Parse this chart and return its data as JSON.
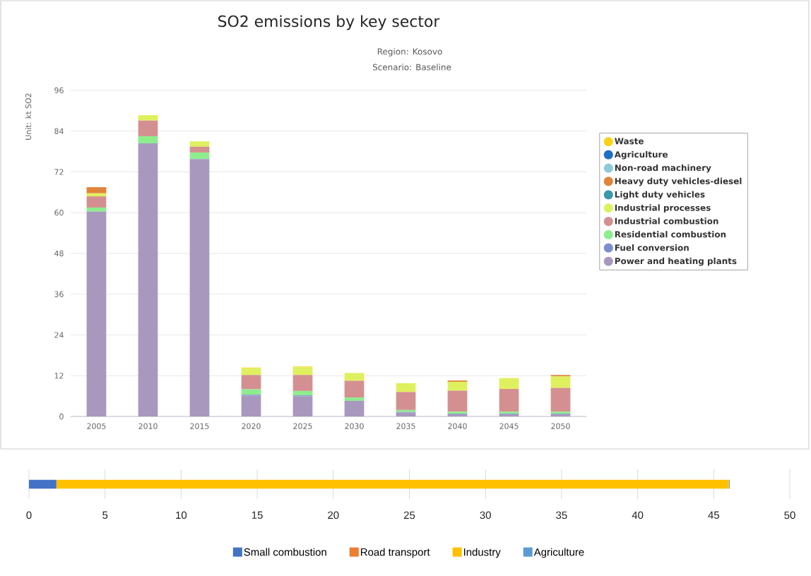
{
  "chart_data": [
    {
      "type": "bar",
      "title": "SO2 emissions by key sector",
      "subtitle": "Region: Kosovo",
      "annotations": [
        "Scenario: Baseline"
      ],
      "ylabel": "Unit: kt SO2",
      "stacked": true,
      "categories": [
        "2005",
        "2010",
        "2015",
        "2020",
        "2025",
        "2030",
        "2035",
        "2040",
        "2045",
        "2050"
      ],
      "ylim": [
        0,
        96
      ],
      "yticks": [
        0,
        12,
        24,
        36,
        48,
        60,
        72,
        84,
        96
      ],
      "grid": "y",
      "legend": "right",
      "series": [
        {
          "name": "Power and heating plants",
          "color": "#a898be",
          "values": [
            60.3,
            80.4,
            75.8,
            6.1,
            5.9,
            4.6,
            1.1,
            0.6,
            0.6,
            0.6
          ]
        },
        {
          "name": "Fuel conversion",
          "color": "#7b8fcc",
          "values": [
            0,
            0,
            0,
            0.3,
            0.3,
            0,
            0.2,
            0.2,
            0.2,
            0.2
          ]
        },
        {
          "name": "Residential combustion",
          "color": "#8ded8d",
          "values": [
            1.2,
            2.1,
            1.9,
            1.6,
            1.3,
            1.0,
            0.6,
            0.6,
            0.6,
            0.6
          ]
        },
        {
          "name": "Industrial combustion",
          "color": "#d49090",
          "values": [
            3.3,
            4.6,
            1.7,
            4.2,
            4.7,
            4.9,
            5.3,
            6.2,
            6.7,
            7.0
          ]
        },
        {
          "name": "Industrial processes",
          "color": "#dff05e",
          "values": [
            0.9,
            1.6,
            1.6,
            2.0,
            2.3,
            2.3,
            2.6,
            2.6,
            3.2,
            3.4
          ]
        },
        {
          "name": "Light duty vehicles",
          "color": "#3a98a8",
          "values": [
            0,
            0,
            0,
            0,
            0,
            0,
            0,
            0,
            0,
            0
          ]
        },
        {
          "name": "Heavy duty vehicles-diesel",
          "color": "#e0843a",
          "values": [
            1.8,
            0,
            0,
            0,
            0,
            0,
            0,
            0.4,
            0,
            0.4
          ]
        },
        {
          "name": "Non-road machinery",
          "color": "#8ec9dc",
          "values": [
            0,
            0,
            0,
            0,
            0,
            0,
            0,
            0,
            0,
            0
          ]
        },
        {
          "name": "Agriculture",
          "color": "#1f6fc5",
          "values": [
            0,
            0,
            0,
            0,
            0,
            0,
            0,
            0,
            0,
            0
          ]
        },
        {
          "name": "Waste",
          "color": "#f9d21a",
          "values": [
            0,
            0,
            0,
            0.2,
            0.2,
            0,
            0,
            0,
            0,
            0
          ]
        }
      ]
    },
    {
      "type": "bar",
      "orientation": "horizontal",
      "stacked": true,
      "categories": [
        null
      ],
      "xlim": [
        0,
        50
      ],
      "xticks": [
        0,
        5,
        10,
        15,
        20,
        25,
        30,
        35,
        40,
        45,
        50
      ],
      "grid": "x",
      "legend": "bottom",
      "series": [
        {
          "name": "Small combustion",
          "color": "#4472c4",
          "values": [
            1.8
          ]
        },
        {
          "name": "Road transport",
          "color": "#ed7d31",
          "values": [
            0
          ]
        },
        {
          "name": "Industry",
          "color": "#ffc000",
          "values": [
            44.2
          ]
        },
        {
          "name": "Agriculture",
          "color": "#5b9bd5",
          "values": [
            0.05
          ]
        }
      ]
    }
  ]
}
